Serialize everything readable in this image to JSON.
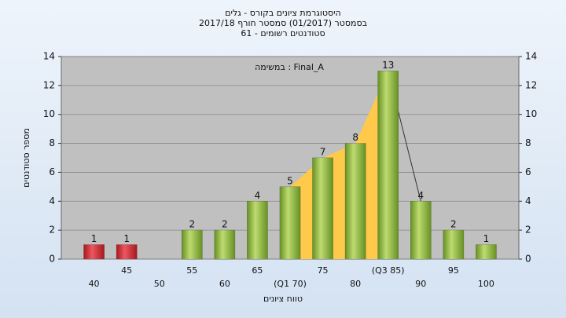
{
  "chart_data": {
    "type": "bar",
    "title": "היסטוגרמת ציונים בקורס - גלים",
    "subtitle": "בסמסטר  (01/2017)  סמסטר חורף 2017/18",
    "subtitle2": "סטודנטים רשומים - 61",
    "annotation": "במשימה : Final_A",
    "x_label": "טווח ציונים",
    "y_label": "מספר סטודנטים",
    "categories": [
      "40",
      "45",
      "50",
      "55",
      "60",
      "65",
      "(Q1 70)",
      "75",
      "80",
      "(Q3 85)",
      "90",
      "95",
      "100"
    ],
    "values": [
      1,
      1,
      null,
      2,
      2,
      4,
      5,
      7,
      8,
      13,
      4,
      2,
      1
    ],
    "colors": [
      "#d42a2e",
      "#d42a2e",
      "#8fbc3c",
      "#8fbc3c",
      "#8fbc3c",
      "#8fbc3c",
      "#8fbc3c",
      "#8fbc3c",
      "#8fbc3c",
      "#8fbc3c",
      "#8fbc3c",
      "#8fbc3c",
      "#8fbc3c"
    ],
    "area_color": "#ffc94a",
    "ylim": [
      0,
      14
    ],
    "yticks": [
      0,
      2,
      4,
      6,
      8,
      10,
      12,
      14
    ],
    "grid": true
  }
}
